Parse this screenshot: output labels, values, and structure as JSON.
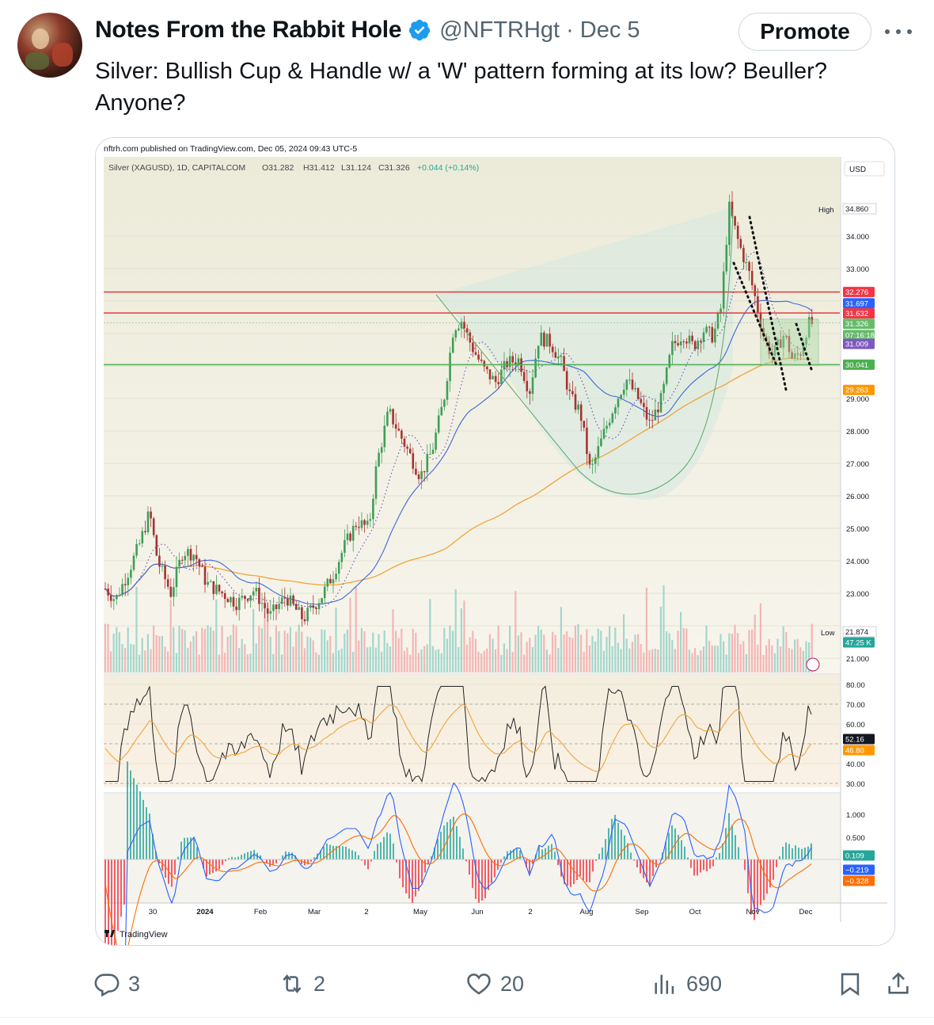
{
  "post": {
    "author_name": "Notes From the Rabbit Hole",
    "handle": "@NFTRHgt",
    "separator": "·",
    "date": "Dec 5",
    "promote_label": "Promote",
    "text": "Silver: Bullish Cup & Handle w/ a 'W' pattern forming at its low? Beuller? Anyone?",
    "icons": [
      "verified-badge-icon",
      "more-icon",
      "reply-icon",
      "retweet-icon",
      "like-icon",
      "views-icon",
      "bookmark-icon",
      "share-icon"
    ],
    "colors": {
      "verified": "#1d9bf0",
      "muted": "#536471",
      "text": "#0f1419"
    }
  },
  "actions": {
    "replies": "3",
    "reposts": "2",
    "likes": "20",
    "views": "690"
  },
  "chart": {
    "published": "nftrh.com published on TradingView.com, Dec 05, 2024 09:43 UTC-5",
    "symbol_line": "Silver (XAGUSD), 1D, CAPITALCOM",
    "ohlc": {
      "o": "O31.282",
      "h": "H31.412",
      "l": "L31.124",
      "c": "C31.326",
      "chg": "+0.044 (+0.14%)"
    },
    "currency": "USD",
    "brand": "TradingView",
    "high_label": "High",
    "high_value": "34.860",
    "low_label": "Low",
    "low_value": "21.874",
    "price_ticks": [
      "34.000",
      "33.000",
      "29.000",
      "28.000",
      "27.000",
      "26.000",
      "25.000",
      "24.000",
      "23.000",
      "21.000"
    ],
    "price_badges": [
      {
        "value": "32.276",
        "color": "#f23645"
      },
      {
        "value": "31.697",
        "color": "#2962ff"
      },
      {
        "value": "31.632",
        "color": "#f23645"
      },
      {
        "value": "31.326",
        "color": "#66bb6a"
      },
      {
        "value": "07:16:18",
        "color": "#66bb6a"
      },
      {
        "value": "31.009",
        "color": "#7e57c2"
      },
      {
        "value": "30.041",
        "color": "#4caf50"
      },
      {
        "value": "29.263",
        "color": "#ff9800"
      },
      {
        "value": "47.25 K",
        "color": "#26a69a"
      }
    ],
    "rsi_ticks": [
      "80.00",
      "70.00",
      "60.00",
      "40.00",
      "30.00"
    ],
    "rsi_badges": [
      {
        "value": "52.16",
        "color": "#131722"
      },
      {
        "value": "46.80",
        "color": "#ff9800"
      }
    ],
    "macd_ticks": [
      "1.000",
      "0.500"
    ],
    "macd_badges": [
      {
        "value": "0.109",
        "color": "#26a69a"
      },
      {
        "value": "−0.219",
        "color": "#2962ff"
      },
      {
        "value": "−0.328",
        "color": "#ff6d00"
      }
    ],
    "time_labels": [
      "30",
      "2024",
      "Feb",
      "Mar",
      "2",
      "May",
      "Jun",
      "2",
      "Aug",
      "Sep",
      "Oct",
      "Nov",
      "Dec"
    ]
  }
}
